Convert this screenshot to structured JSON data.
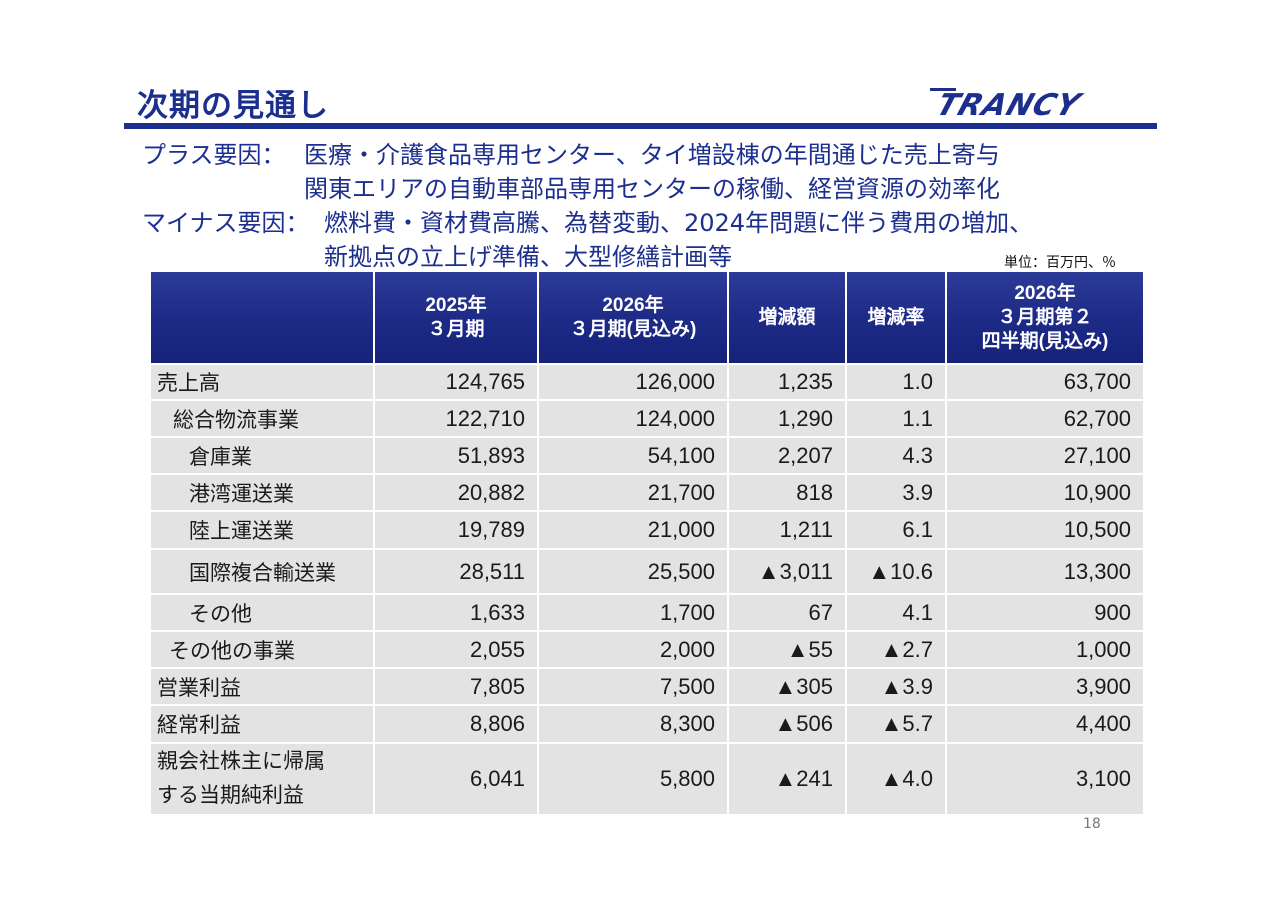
{
  "title": "次期の見通し",
  "logo_text": "TRANCY",
  "colors": {
    "brand": "#1c2f8f",
    "header_bg": "#1c2a86",
    "row_bg": "#e3e3e3"
  },
  "factors": {
    "plus_label": "プラス要因：",
    "plus_line1": "医療・介護食品専用センター、タイ増設棟の年間通じた売上寄与",
    "plus_line2": "関東エリアの自動車部品専用センターの稼働、経営資源の効率化",
    "minus_label": "マイナス要因：",
    "minus_line1": "燃料費・資材費高騰、為替変動、2024年問題に伴う費用の増加、",
    "minus_line2": "新拠点の立上げ準備、大型修繕計画等"
  },
  "unit_note": "単位：百万円、％",
  "table": {
    "headers": [
      {
        "line1": "",
        "line2": "",
        "line3": ""
      },
      {
        "line1": "2025年",
        "line2": "３月期",
        "line3": ""
      },
      {
        "line1": "2026年",
        "line2": "３月期(見込み)",
        "line3": ""
      },
      {
        "line1": "増減額",
        "line2": "",
        "line3": ""
      },
      {
        "line1": "増減率",
        "line2": "",
        "line3": ""
      },
      {
        "line1": "2026年",
        "line2": "３月期第２",
        "line3": "四半期(見込み)"
      }
    ],
    "rows": [
      {
        "label": "売上高",
        "cells": [
          "124,765",
          "126,000",
          "1,235",
          "1.0",
          "63,700"
        ]
      },
      {
        "label": "総合物流事業",
        "cells": [
          "122,710",
          "124,000",
          "1,290",
          "1.1",
          "62,700"
        ]
      },
      {
        "label": "倉庫業",
        "cells": [
          "51,893",
          "54,100",
          "2,207",
          "4.3",
          "27,100"
        ]
      },
      {
        "label": "港湾運送業",
        "cells": [
          "20,882",
          "21,700",
          "818",
          "3.9",
          "10,900"
        ]
      },
      {
        "label": "陸上運送業",
        "cells": [
          "19,789",
          "21,000",
          "1,211",
          "6.1",
          "10,500"
        ]
      },
      {
        "label": "国際複合輸送業",
        "cells": [
          "28,511",
          "25,500",
          "▲3,011",
          "▲10.6",
          "13,300"
        ]
      },
      {
        "label": "その他",
        "cells": [
          "1,633",
          "1,700",
          "67",
          "4.1",
          "900"
        ]
      },
      {
        "label": "その他の事業",
        "cells": [
          "2,055",
          "2,000",
          "▲55",
          "▲2.7",
          "1,000"
        ]
      },
      {
        "label": "営業利益",
        "cells": [
          "7,805",
          "7,500",
          "▲305",
          "▲3.9",
          "3,900"
        ]
      },
      {
        "label": "経常利益",
        "cells": [
          "8,806",
          "8,300",
          "▲506",
          "▲5.7",
          "4,400"
        ]
      },
      {
        "label_line1": "親会社株主に帰属",
        "label_line2": "する当期純利益",
        "cells": [
          "6,041",
          "5,800",
          "▲241",
          "▲4.0",
          "3,100"
        ]
      }
    ]
  },
  "page_number": "18"
}
